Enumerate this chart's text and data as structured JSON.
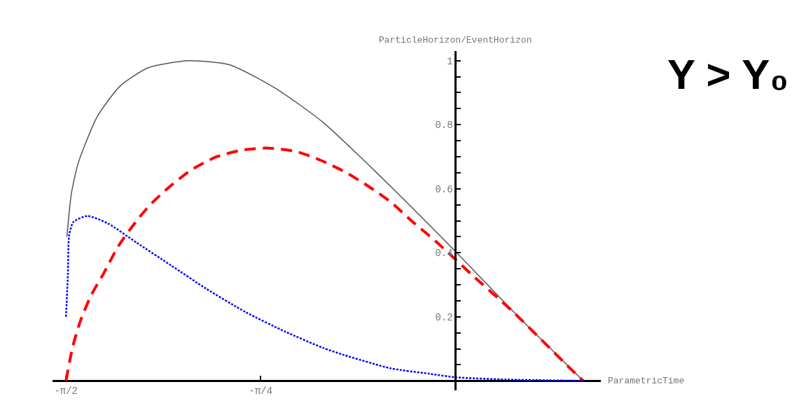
{
  "chart_data": {
    "type": "line",
    "title": "Y > Y₀",
    "xlabel": "ParametricTime",
    "ylabel": "ParticleHorizon/EventHorizon",
    "xlim": [
      -1.625,
      0.586
    ],
    "ylim": [
      -0.03,
      1.03
    ],
    "xticks": [
      {
        "value": -1.5708,
        "label": "-π/2"
      },
      {
        "value": -0.7854,
        "label": "-π/4"
      }
    ],
    "yticks": [
      {
        "value": 0.05,
        "label": null
      },
      {
        "value": 0.1,
        "label": null
      },
      {
        "value": 0.15,
        "label": null
      },
      0.2,
      {
        "value": 0.25,
        "label": null
      },
      {
        "value": 0.3,
        "label": null
      },
      {
        "value": 0.35,
        "label": null
      },
      0.4,
      {
        "value": 0.45,
        "label": null
      },
      {
        "value": 0.5,
        "label": null
      },
      {
        "value": 0.55,
        "label": null
      },
      0.6,
      {
        "value": 0.65,
        "label": null
      },
      {
        "value": 0.7,
        "label": null
      },
      {
        "value": 0.75,
        "label": null
      },
      0.8,
      {
        "value": 0.85,
        "label": null
      },
      {
        "value": 0.9,
        "label": null
      },
      {
        "value": 0.95,
        "label": null
      },
      1
    ],
    "marker": "none",
    "series": [
      {
        "color": "#555555",
        "line_style": "solid",
        "x": [
          -1.567,
          -1.549,
          -1.521,
          -1.445,
          -1.352,
          -1.239,
          -1.079,
          -0.91,
          -0.724,
          -0.535,
          -0.31,
          0,
          0.254,
          0.515
        ],
        "values": [
          0.45,
          0.585,
          0.681,
          0.825,
          0.921,
          0.978,
          1.0,
          0.987,
          0.913,
          0.808,
          0.644,
          0.404,
          0.2,
          0
        ]
      },
      {
        "color": "#ff0000",
        "line_style": "dashed",
        "x": [
          -1.5708,
          -1.544,
          -1.513,
          -1.47,
          -1.417,
          -1.361,
          -1.29,
          -1.231,
          -1.155,
          -1.065,
          -0.966,
          -0.859,
          -0.755,
          -0.642,
          -0.541,
          -0.442,
          -0.346,
          -0.259,
          -0.175,
          -0.09,
          -0.014,
          0.065,
          0.234,
          0.47,
          0.515
        ],
        "values": [
          0,
          0.105,
          0.186,
          0.266,
          0.338,
          0.419,
          0.496,
          0.55,
          0.605,
          0.659,
          0.699,
          0.721,
          0.727,
          0.716,
          0.688,
          0.651,
          0.605,
          0.557,
          0.498,
          0.443,
          0.389,
          0.332,
          0.214,
          0.033,
          0
        ]
      },
      {
        "color": "#0000ff",
        "line_style": "dotted",
        "x": [
          -1.5708,
          -1.563,
          -1.558,
          -1.541,
          -1.484,
          -1.4,
          -1.287,
          -1.146,
          -1.006,
          -0.845,
          -0.685,
          -0.535,
          -0.451,
          -0.262,
          -0.104,
          0,
          0.206,
          0.515
        ],
        "values": [
          0.2,
          0.332,
          0.454,
          0.496,
          0.515,
          0.491,
          0.432,
          0.36,
          0.288,
          0.214,
          0.153,
          0.103,
          0.081,
          0.039,
          0.022,
          0.011,
          0.004,
          0
        ]
      }
    ]
  }
}
